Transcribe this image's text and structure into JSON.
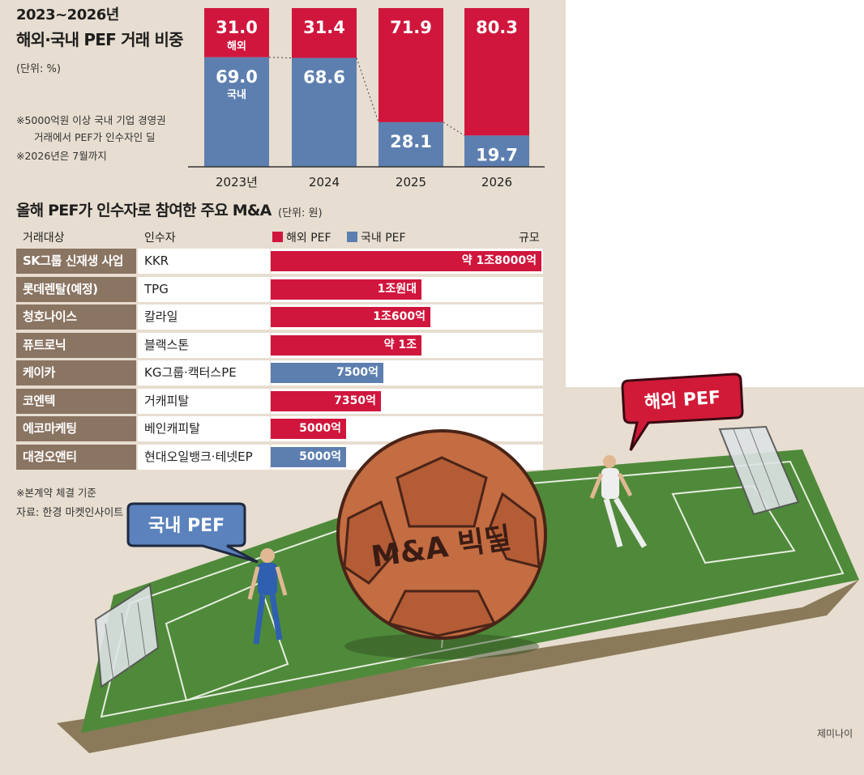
{
  "stacked_title_line1": "2023~2026년",
  "stacked_title_line2": "해외·국내 PEF 거래 비중",
  "stacked_unit": "(단위: %)",
  "notes": [
    "※5000억원 이상 국내 기업 경영권",
    "거래에서 PEF가 인수자인 딜",
    "※2026년은 7월까지"
  ],
  "deals_title": "올해 PEF가 인수자로 참여한 주요 M&A",
  "deals_unit": "(단위: 원)",
  "table_headers": {
    "target": "거래대상",
    "acquirer": "인수자",
    "size": "규모"
  },
  "legend": {
    "foreign": "해외 PEF",
    "domestic": "국내 PEF"
  },
  "colors": {
    "foreign": "#d0163d",
    "domestic": "#5d7fb0",
    "target_cell": "#8a7462",
    "paper": "#e7ddd0"
  },
  "footnote": "※본계약 체결 기준",
  "source": "자료: 한경 마켓인사이트",
  "illustration": {
    "bubble_left": "국내 PEF",
    "bubble_right": "해외 PEF",
    "ball_text": "M&A 빅딜",
    "credit": "제미나이"
  },
  "chart_data": [
    {
      "type": "bar",
      "stacked": true,
      "categories": [
        "2023년",
        "2024",
        "2025",
        "2026"
      ],
      "series": [
        {
          "name": "국내",
          "values": [
            69.0,
            68.6,
            28.1,
            19.7
          ]
        },
        {
          "name": "해외",
          "values": [
            31.0,
            31.4,
            71.9,
            80.3
          ]
        }
      ],
      "ylim": [
        0,
        100
      ]
    },
    {
      "type": "bar",
      "orientation": "horizontal",
      "rows": [
        {
          "target": "SK그룹 신재생 사업",
          "acquirer": "KKR",
          "type": "foreign",
          "value": 18000,
          "label": "약 1조8000억"
        },
        {
          "target": "롯데렌탈(예정)",
          "acquirer": "TPG",
          "type": "foreign",
          "value": 10000,
          "label": "1조원대"
        },
        {
          "target": "청호나이스",
          "acquirer": "칼라일",
          "type": "foreign",
          "value": 10600,
          "label": "1조600억"
        },
        {
          "target": "퓨트로닉",
          "acquirer": "블랙스톤",
          "type": "foreign",
          "value": 10000,
          "label": "약 1조"
        },
        {
          "target": "케이카",
          "acquirer": "KG그룹·캑터스PE",
          "type": "domestic",
          "value": 7500,
          "label": "7500억"
        },
        {
          "target": "코엔텍",
          "acquirer": "거캐피탈",
          "type": "foreign",
          "value": 7350,
          "label": "7350억"
        },
        {
          "target": "에코마케팅",
          "acquirer": "베인캐피탈",
          "type": "foreign",
          "value": 5000,
          "label": "5000억"
        },
        {
          "target": "대경오앤티",
          "acquirer": "현대오일뱅크·테넷EP",
          "type": "domestic",
          "value": 5000,
          "label": "5000억"
        }
      ]
    }
  ]
}
